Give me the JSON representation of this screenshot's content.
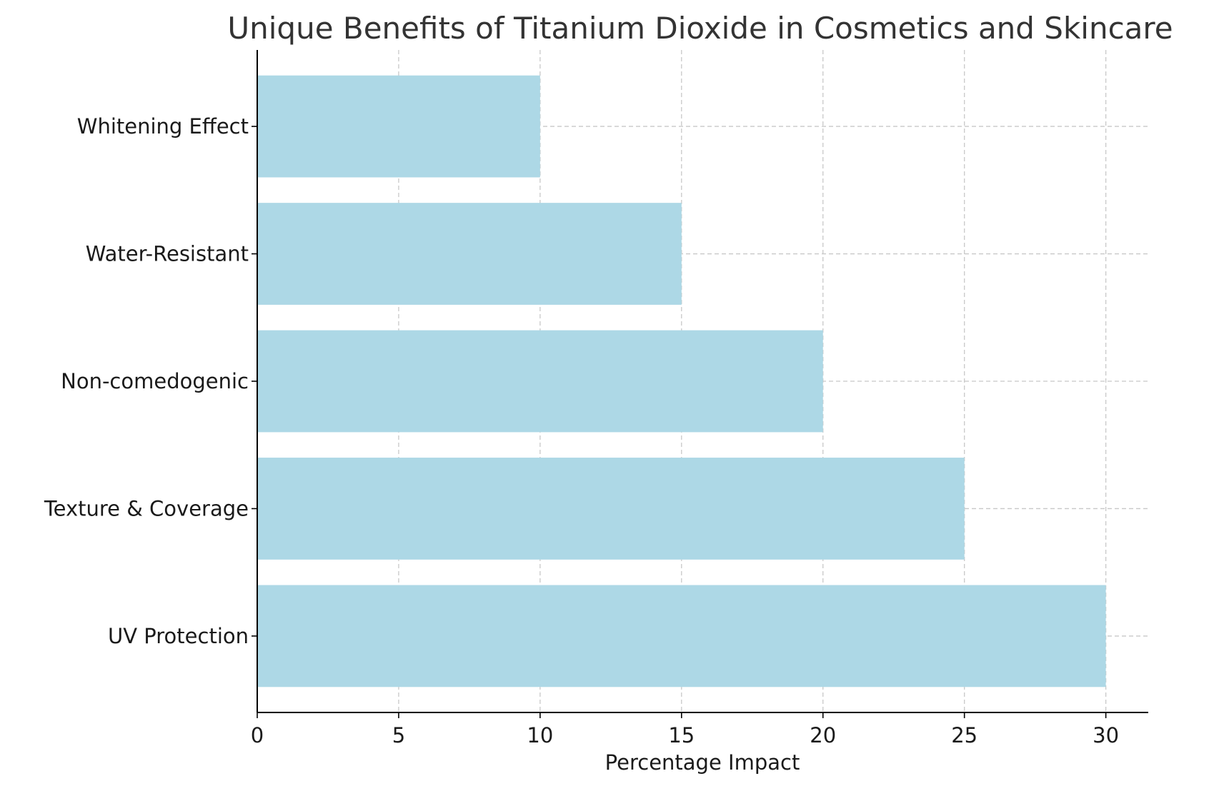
{
  "chart_data": {
    "type": "bar",
    "orientation": "horizontal",
    "title": "Unique Benefits of Titanium Dioxide in Cosmetics and Skincare",
    "xlabel": "Percentage Impact",
    "ylabel": "",
    "categories": [
      "UV Protection",
      "Texture & Coverage",
      "Non-comedogenic",
      "Water-Resistant",
      "Whitening Effect"
    ],
    "values": [
      30,
      25,
      20,
      15,
      10
    ],
    "xlim": [
      0,
      31.5
    ],
    "xticks": [
      0,
      5,
      10,
      15,
      20,
      25,
      30
    ],
    "grid": true,
    "bar_color": "#add8e6"
  }
}
